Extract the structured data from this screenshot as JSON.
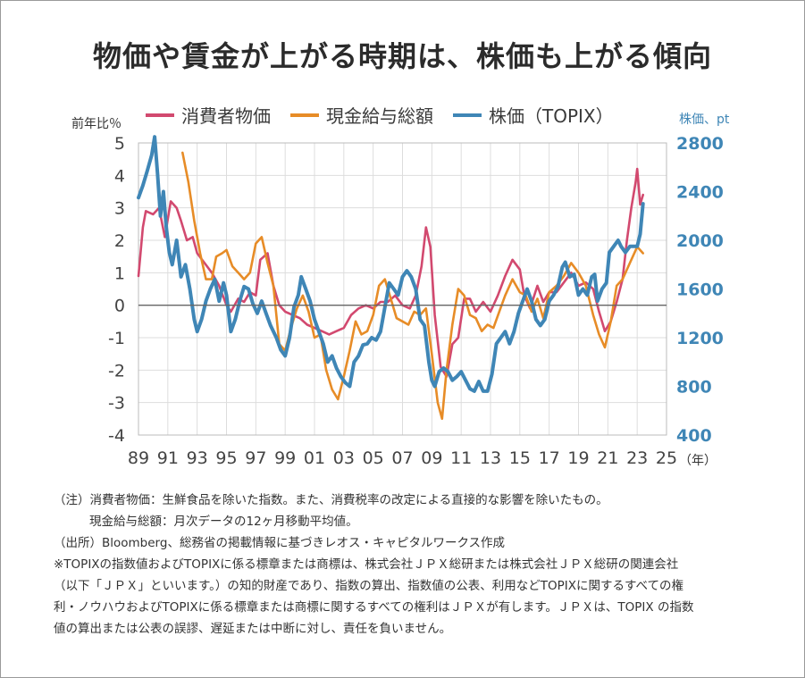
{
  "title": "物価や賃金が上がる時期は、株価も上がる傾向",
  "legend": [
    {
      "name": "消費者物価",
      "color": "#d2496f"
    },
    {
      "name": "現金給与総額",
      "color": "#e78c27"
    },
    {
      "name": "株価（TOPIX）",
      "color": "#3f86b6"
    }
  ],
  "chart_data": {
    "type": "line",
    "y_left_label": "前年比％",
    "y_right_label": "株価、pt",
    "x_unit": "（年）",
    "x_ticks": [
      "89",
      "91",
      "93",
      "95",
      "97",
      "99",
      "01",
      "03",
      "05",
      "07",
      "09",
      "11",
      "13",
      "15",
      "17",
      "19",
      "21",
      "23",
      "25"
    ],
    "x_range": [
      1989,
      2025
    ],
    "y_left_range": [
      -4,
      5
    ],
    "y_left_ticks": [
      "5",
      "4",
      "3",
      "2",
      "1",
      "0",
      "-1",
      "-2",
      "-3",
      "-4"
    ],
    "y_right_range": [
      400,
      2800
    ],
    "y_right_ticks": [
      "2800",
      "2400",
      "2000",
      "1600",
      "1200",
      "800",
      "400"
    ],
    "grid": true,
    "series": [
      {
        "name": "消費者物価",
        "axis": "left",
        "color": "#d2496f",
        "points": [
          [
            1989.0,
            0.9
          ],
          [
            1989.3,
            2.4
          ],
          [
            1989.5,
            2.9
          ],
          [
            1990.0,
            2.8
          ],
          [
            1990.4,
            3.0
          ],
          [
            1990.8,
            2.1
          ],
          [
            1991.2,
            3.2
          ],
          [
            1991.6,
            3.0
          ],
          [
            1991.9,
            2.6
          ],
          [
            1992.3,
            2.0
          ],
          [
            1992.7,
            2.1
          ],
          [
            1993.0,
            1.6
          ],
          [
            1993.5,
            1.3
          ],
          [
            1994.0,
            1.0
          ],
          [
            1994.5,
            0.6
          ],
          [
            1995.0,
            0.0
          ],
          [
            1995.3,
            -0.2
          ],
          [
            1995.8,
            0.2
          ],
          [
            1996.2,
            0.1
          ],
          [
            1996.6,
            0.4
          ],
          [
            1997.0,
            0.3
          ],
          [
            1997.3,
            1.4
          ],
          [
            1997.8,
            1.6
          ],
          [
            1998.2,
            0.6
          ],
          [
            1998.6,
            0.0
          ],
          [
            1999.0,
            -0.2
          ],
          [
            1999.5,
            -0.3
          ],
          [
            2000.0,
            -0.4
          ],
          [
            2000.5,
            -0.6
          ],
          [
            2001.0,
            -0.7
          ],
          [
            2001.5,
            -0.8
          ],
          [
            2002.0,
            -0.9
          ],
          [
            2002.5,
            -0.8
          ],
          [
            2003.0,
            -0.7
          ],
          [
            2003.5,
            -0.3
          ],
          [
            2004.0,
            -0.1
          ],
          [
            2004.5,
            0.0
          ],
          [
            2005.0,
            -0.1
          ],
          [
            2005.5,
            0.1
          ],
          [
            2006.0,
            0.1
          ],
          [
            2006.5,
            0.3
          ],
          [
            2007.0,
            0.0
          ],
          [
            2007.5,
            -0.1
          ],
          [
            2007.9,
            0.3
          ],
          [
            2008.3,
            1.2
          ],
          [
            2008.6,
            2.4
          ],
          [
            2008.9,
            1.8
          ],
          [
            2009.2,
            -0.3
          ],
          [
            2009.6,
            -1.9
          ],
          [
            2010.0,
            -2.2
          ],
          [
            2010.4,
            -1.2
          ],
          [
            2010.8,
            -1.0
          ],
          [
            2011.2,
            0.2
          ],
          [
            2011.6,
            0.2
          ],
          [
            2012.0,
            -0.2
          ],
          [
            2012.5,
            0.1
          ],
          [
            2013.0,
            -0.2
          ],
          [
            2013.5,
            0.3
          ],
          [
            2014.0,
            0.9
          ],
          [
            2014.5,
            1.4
          ],
          [
            2015.0,
            1.1
          ],
          [
            2015.3,
            0.3
          ],
          [
            2015.7,
            -0.1
          ],
          [
            2016.2,
            0.6
          ],
          [
            2016.6,
            0.1
          ],
          [
            2017.0,
            0.4
          ],
          [
            2017.5,
            0.4
          ],
          [
            2018.0,
            0.7
          ],
          [
            2018.5,
            1.0
          ],
          [
            2019.0,
            0.6
          ],
          [
            2019.5,
            0.7
          ],
          [
            2020.0,
            0.5
          ],
          [
            2020.4,
            -0.2
          ],
          [
            2020.8,
            -0.8
          ],
          [
            2021.2,
            -0.5
          ],
          [
            2021.6,
            0.1
          ],
          [
            2022.0,
            0.8
          ],
          [
            2022.3,
            2.0
          ],
          [
            2022.6,
            3.0
          ],
          [
            2022.9,
            3.8
          ],
          [
            2023.0,
            4.2
          ],
          [
            2023.2,
            3.1
          ],
          [
            2023.4,
            3.4
          ]
        ]
      },
      {
        "name": "現金給与総額",
        "axis": "left",
        "color": "#e78c27",
        "points": [
          [
            1992.0,
            4.7
          ],
          [
            1992.4,
            3.8
          ],
          [
            1992.8,
            2.6
          ],
          [
            1993.2,
            1.6
          ],
          [
            1993.6,
            0.8
          ],
          [
            1994.0,
            0.8
          ],
          [
            1994.3,
            1.5
          ],
          [
            1994.7,
            1.6
          ],
          [
            1995.0,
            1.7
          ],
          [
            1995.4,
            1.2
          ],
          [
            1995.8,
            1.0
          ],
          [
            1996.2,
            0.8
          ],
          [
            1996.6,
            1.0
          ],
          [
            1997.0,
            1.9
          ],
          [
            1997.4,
            2.1
          ],
          [
            1997.8,
            1.3
          ],
          [
            1998.2,
            0.6
          ],
          [
            1998.6,
            -1.2
          ],
          [
            1999.0,
            -1.4
          ],
          [
            1999.4,
            -0.7
          ],
          [
            1999.8,
            -0.1
          ],
          [
            2000.2,
            0.3
          ],
          [
            2000.6,
            -0.2
          ],
          [
            2001.0,
            -1.0
          ],
          [
            2001.4,
            -0.9
          ],
          [
            2001.8,
            -2.0
          ],
          [
            2002.2,
            -2.6
          ],
          [
            2002.6,
            -2.9
          ],
          [
            2003.0,
            -2.2
          ],
          [
            2003.4,
            -1.4
          ],
          [
            2003.8,
            -0.5
          ],
          [
            2004.2,
            -0.9
          ],
          [
            2004.6,
            -0.8
          ],
          [
            2005.0,
            -0.3
          ],
          [
            2005.4,
            0.6
          ],
          [
            2005.8,
            0.8
          ],
          [
            2006.2,
            0.2
          ],
          [
            2006.6,
            -0.4
          ],
          [
            2007.0,
            -0.5
          ],
          [
            2007.4,
            -0.6
          ],
          [
            2007.8,
            -0.2
          ],
          [
            2008.2,
            -0.3
          ],
          [
            2008.6,
            -0.1
          ],
          [
            2009.0,
            -1.5
          ],
          [
            2009.4,
            -3.0
          ],
          [
            2009.7,
            -3.5
          ],
          [
            2010.0,
            -2.0
          ],
          [
            2010.4,
            -0.6
          ],
          [
            2010.8,
            0.5
          ],
          [
            2011.2,
            0.3
          ],
          [
            2011.6,
            -0.3
          ],
          [
            2012.0,
            -0.4
          ],
          [
            2012.4,
            -0.8
          ],
          [
            2012.8,
            -0.6
          ],
          [
            2013.2,
            -0.7
          ],
          [
            2013.6,
            -0.2
          ],
          [
            2014.0,
            0.3
          ],
          [
            2014.5,
            0.8
          ],
          [
            2015.0,
            0.4
          ],
          [
            2015.4,
            0.3
          ],
          [
            2015.8,
            -0.2
          ],
          [
            2016.2,
            0.2
          ],
          [
            2016.6,
            -0.4
          ],
          [
            2017.0,
            0.4
          ],
          [
            2017.5,
            0.6
          ],
          [
            2018.0,
            0.9
          ],
          [
            2018.5,
            1.3
          ],
          [
            2019.0,
            1.0
          ],
          [
            2019.5,
            0.6
          ],
          [
            2020.0,
            -0.3
          ],
          [
            2020.4,
            -0.9
          ],
          [
            2020.8,
            -1.3
          ],
          [
            2021.2,
            -0.5
          ],
          [
            2021.6,
            0.6
          ],
          [
            2022.0,
            0.8
          ],
          [
            2022.5,
            1.3
          ],
          [
            2023.0,
            1.8
          ],
          [
            2023.4,
            1.6
          ]
        ]
      },
      {
        "name": "株価（TOPIX）",
        "axis": "right",
        "color": "#3f86b6",
        "points": [
          [
            1989.0,
            2350
          ],
          [
            1989.3,
            2450
          ],
          [
            1989.6,
            2570
          ],
          [
            1989.9,
            2700
          ],
          [
            1990.1,
            2850
          ],
          [
            1990.3,
            2550
          ],
          [
            1990.5,
            2200
          ],
          [
            1990.7,
            2400
          ],
          [
            1990.9,
            2100
          ],
          [
            1991.1,
            1900
          ],
          [
            1991.3,
            1800
          ],
          [
            1991.6,
            2000
          ],
          [
            1991.9,
            1700
          ],
          [
            1992.2,
            1800
          ],
          [
            1992.5,
            1600
          ],
          [
            1992.8,
            1350
          ],
          [
            1993.0,
            1250
          ],
          [
            1993.3,
            1350
          ],
          [
            1993.6,
            1500
          ],
          [
            1993.9,
            1600
          ],
          [
            1994.2,
            1680
          ],
          [
            1994.5,
            1500
          ],
          [
            1994.8,
            1650
          ],
          [
            1995.0,
            1550
          ],
          [
            1995.3,
            1250
          ],
          [
            1995.6,
            1350
          ],
          [
            1995.9,
            1500
          ],
          [
            1996.2,
            1620
          ],
          [
            1996.5,
            1600
          ],
          [
            1996.8,
            1480
          ],
          [
            1997.1,
            1400
          ],
          [
            1997.4,
            1500
          ],
          [
            1997.7,
            1400
          ],
          [
            1998.0,
            1300
          ],
          [
            1998.4,
            1200
          ],
          [
            1998.7,
            1100
          ],
          [
            1999.0,
            1050
          ],
          [
            1999.3,
            1200
          ],
          [
            1999.6,
            1450
          ],
          [
            1999.9,
            1550
          ],
          [
            2000.1,
            1700
          ],
          [
            2000.4,
            1600
          ],
          [
            2000.7,
            1500
          ],
          [
            2001.0,
            1350
          ],
          [
            2001.3,
            1250
          ],
          [
            2001.6,
            1150
          ],
          [
            2001.9,
            1000
          ],
          [
            2002.2,
            1050
          ],
          [
            2002.5,
            950
          ],
          [
            2002.8,
            880
          ],
          [
            2003.1,
            830
          ],
          [
            2003.4,
            800
          ],
          [
            2003.7,
            1000
          ],
          [
            2004.0,
            1050
          ],
          [
            2004.3,
            1140
          ],
          [
            2004.6,
            1150
          ],
          [
            2004.9,
            1200
          ],
          [
            2005.2,
            1180
          ],
          [
            2005.5,
            1250
          ],
          [
            2005.8,
            1450
          ],
          [
            2006.1,
            1650
          ],
          [
            2006.4,
            1600
          ],
          [
            2006.7,
            1550
          ],
          [
            2007.0,
            1700
          ],
          [
            2007.3,
            1750
          ],
          [
            2007.6,
            1700
          ],
          [
            2007.9,
            1600
          ],
          [
            2008.2,
            1350
          ],
          [
            2008.5,
            1300
          ],
          [
            2008.8,
            1000
          ],
          [
            2009.0,
            850
          ],
          [
            2009.2,
            800
          ],
          [
            2009.5,
            920
          ],
          [
            2009.8,
            950
          ],
          [
            2010.1,
            920
          ],
          [
            2010.4,
            850
          ],
          [
            2010.7,
            880
          ],
          [
            2011.0,
            920
          ],
          [
            2011.3,
            850
          ],
          [
            2011.6,
            780
          ],
          [
            2011.9,
            760
          ],
          [
            2012.2,
            840
          ],
          [
            2012.5,
            760
          ],
          [
            2012.8,
            760
          ],
          [
            2013.1,
            900
          ],
          [
            2013.4,
            1150
          ],
          [
            2013.7,
            1200
          ],
          [
            2014.0,
            1250
          ],
          [
            2014.3,
            1150
          ],
          [
            2014.6,
            1250
          ],
          [
            2014.9,
            1400
          ],
          [
            2015.2,
            1500
          ],
          [
            2015.5,
            1600
          ],
          [
            2015.8,
            1500
          ],
          [
            2016.1,
            1350
          ],
          [
            2016.4,
            1300
          ],
          [
            2016.7,
            1350
          ],
          [
            2017.0,
            1500
          ],
          [
            2017.3,
            1550
          ],
          [
            2017.6,
            1620
          ],
          [
            2017.9,
            1780
          ],
          [
            2018.1,
            1820
          ],
          [
            2018.4,
            1700
          ],
          [
            2018.7,
            1720
          ],
          [
            2019.0,
            1550
          ],
          [
            2019.3,
            1600
          ],
          [
            2019.6,
            1550
          ],
          [
            2019.9,
            1700
          ],
          [
            2020.1,
            1720
          ],
          [
            2020.3,
            1500
          ],
          [
            2020.6,
            1600
          ],
          [
            2020.9,
            1650
          ],
          [
            2021.1,
            1900
          ],
          [
            2021.4,
            1950
          ],
          [
            2021.7,
            2000
          ],
          [
            2021.9,
            1950
          ],
          [
            2022.2,
            1900
          ],
          [
            2022.5,
            1950
          ],
          [
            2022.8,
            1950
          ],
          [
            2023.0,
            1950
          ],
          [
            2023.2,
            2050
          ],
          [
            2023.4,
            2300
          ]
        ]
      }
    ]
  },
  "notes": [
    "（注）消費者物価：生鮮食品を除いた指数。また、消費税率の改定による直接的な影響を除いたもの。",
    "現金給与総額：月次データの12ヶ月移動平均値。",
    "（出所）Bloomberg、総務省の掲載情報に基づきレオス・キャピタルワークス作成",
    "※TOPIXの指数値およびTOPIXに係る標章または商標は、株式会社ＪＰＸ総研または株式会社ＪＰＸ総研の関連会社",
    "（以下「ＪＰＸ」といいます。）の知的財産であり、指数の算出、指数値の公表、利用などTOPIXに関するすべての権",
    "利・ノウハウおよびTOPIXに係る標章または商標に関するすべての権利はＪＰＸが有します。ＪＰＸは、TOPIX の指数",
    "値の算出または公表の誤謬、遅延または中断に対し、責任を負いません。"
  ]
}
